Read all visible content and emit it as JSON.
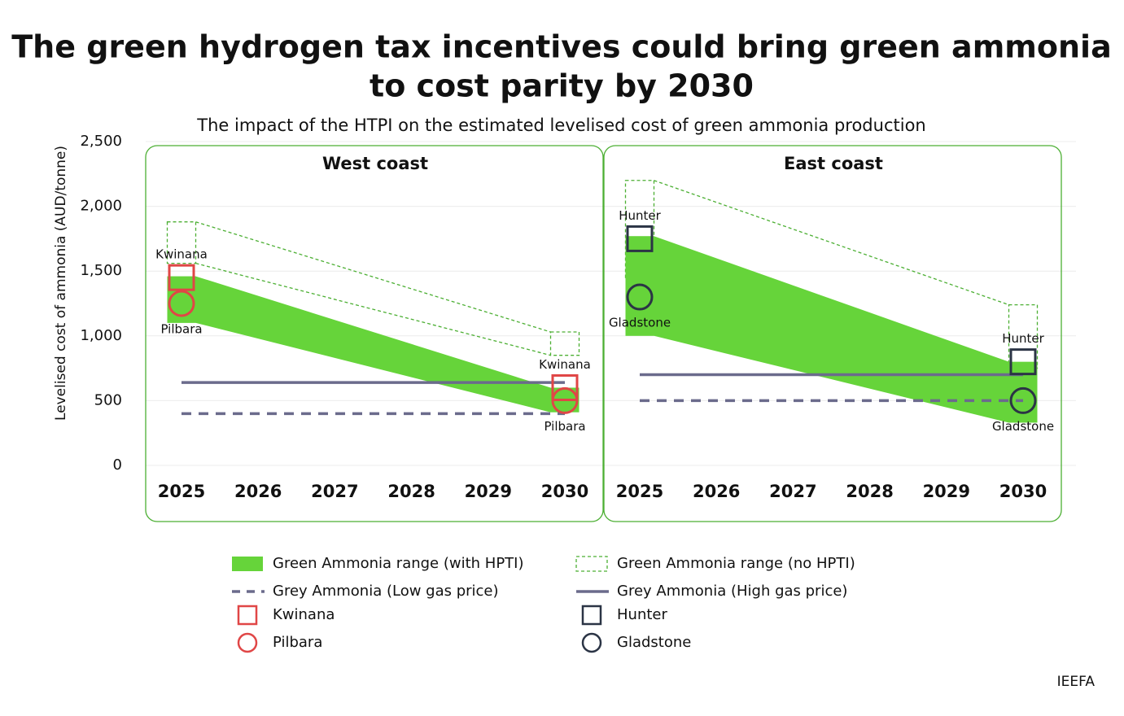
{
  "chart_data": {
    "title": [
      "The green hydrogen tax incentives could bring green ammonia",
      "to cost parity by 2030"
    ],
    "subtitle": "The impact of the HTPI on the estimated levelised cost of green ammonia production",
    "y_label": "Levelised cost of ammonia (AUD/tonne)",
    "source": "IEEFA",
    "ylim": [
      0,
      2500
    ],
    "yticks": [
      0,
      500,
      {
        "value": 1000,
        "label": "1,000"
      },
      {
        "value": 1500,
        "label": "1,500"
      },
      {
        "value": 2000,
        "label": "2,000"
      },
      {
        "value": 2500,
        "label": "2,500"
      }
    ],
    "grid": true,
    "panels": [
      {
        "type": "range",
        "title": "West coast",
        "xlim": [
          2025,
          2030
        ],
        "xticks": [
          2025,
          2026,
          2027,
          2028,
          2029,
          2030
        ],
        "series": [
          {
            "name": "Green Ammonia range (with HPTI)",
            "kind": "band",
            "color": "#66d43a",
            "x": [
              2025,
              2030
            ],
            "low": [
              1100,
              410
            ],
            "high": [
              1460,
              600
            ]
          },
          {
            "name": "Green Ammonia range (no HPTI)",
            "kind": "band-dashed",
            "color": "#4caf33",
            "x": [
              2025,
              2030
            ],
            "low": [
              1560,
              850
            ],
            "high": [
              1880,
              1030
            ]
          },
          {
            "name": "Grey Ammonia (Low gas price)",
            "kind": "line-dashed",
            "color": "#6b6b8c",
            "x": [
              2025,
              2030
            ],
            "values": [
              400,
              400
            ]
          },
          {
            "name": "Grey Ammonia (High gas price)",
            "kind": "line",
            "color": "#6b6b8c",
            "x": [
              2025,
              2030
            ],
            "values": [
              640,
              640
            ]
          },
          {
            "name": "Kwinana",
            "kind": "square",
            "color": "#e04646",
            "x": [
              2025,
              2030
            ],
            "values": [
              1450,
              600
            ]
          },
          {
            "name": "Pilbara",
            "kind": "circle",
            "color": "#e04646",
            "x": [
              2025,
              2030
            ],
            "values": [
              1250,
              500
            ]
          }
        ]
      },
      {
        "type": "range",
        "title": "East coast",
        "xlim": [
          2025,
          2030
        ],
        "xticks": [
          2025,
          2026,
          2027,
          2028,
          2029,
          2030
        ],
        "series": [
          {
            "name": "Green Ammonia range (with HPTI)",
            "kind": "band",
            "color": "#66d43a",
            "x": [
              2025,
              2030
            ],
            "low": [
              1000,
              330
            ],
            "high": [
              1770,
              800
            ]
          },
          {
            "name": "Green Ammonia range (no HPTI)",
            "kind": "band-dashed",
            "color": "#4caf33",
            "x": [
              2025,
              2030
            ],
            "low": [
              1450,
              750
            ],
            "high": [
              2200,
              1240
            ]
          },
          {
            "name": "Grey Ammonia (Low gas price)",
            "kind": "line-dashed",
            "color": "#6b6b8c",
            "x": [
              2025,
              2030
            ],
            "values": [
              500,
              500
            ]
          },
          {
            "name": "Grey Ammonia (High gas price)",
            "kind": "line",
            "color": "#6b6b8c",
            "x": [
              2025,
              2030
            ],
            "values": [
              700,
              700
            ]
          },
          {
            "name": "Hunter",
            "kind": "square",
            "color": "#2b3445",
            "x": [
              2025,
              2030
            ],
            "values": [
              1750,
              800
            ]
          },
          {
            "name": "Gladstone",
            "kind": "circle",
            "color": "#2b3445",
            "x": [
              2025,
              2030
            ],
            "values": [
              1300,
              500
            ]
          }
        ]
      }
    ]
  }
}
